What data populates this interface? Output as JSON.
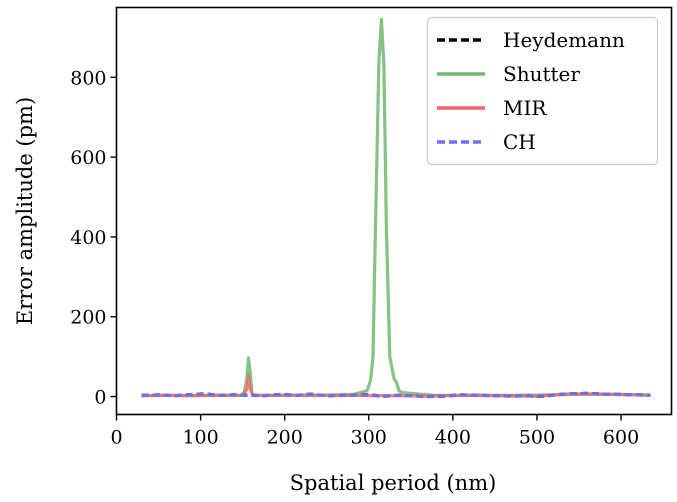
{
  "chart_data": {
    "type": "line",
    "title": "",
    "xlabel": "Spatial period (nm)",
    "ylabel": "Error amplitude (pm)",
    "xlim": [
      0,
      660
    ],
    "ylim": [
      -45,
      975
    ],
    "xticks": [
      0,
      100,
      200,
      300,
      400,
      500,
      600
    ],
    "yticks": [
      0,
      200,
      400,
      600,
      800
    ],
    "grid": false,
    "legend_position": "top-right",
    "series": [
      {
        "name": "Heydemann",
        "color": "#000000",
        "style": "dashed",
        "x": [
          30,
          50,
          70,
          90,
          105,
          120,
          140,
          158,
          175,
          195,
          215,
          230,
          250,
          270,
          290,
          300,
          310,
          320,
          335,
          350,
          370,
          390,
          410,
          430,
          450,
          470,
          490,
          500,
          510,
          525,
          540,
          560,
          580,
          600,
          620,
          635
        ],
        "y": [
          3,
          4,
          2,
          5,
          7,
          3,
          4,
          3,
          2,
          5,
          3,
          6,
          2,
          3,
          4,
          5,
          2,
          1,
          3,
          2,
          0,
          1,
          4,
          3,
          2,
          1,
          2,
          0,
          1,
          5,
          7,
          8,
          6,
          5,
          4,
          3
        ]
      },
      {
        "name": "Shutter",
        "color": "#70b870",
        "style": "solid",
        "x": [
          30,
          60,
          90,
          120,
          148,
          152,
          155,
          157,
          159,
          161,
          164,
          170,
          200,
          240,
          280,
          290,
          298,
          302,
          305,
          308,
          312,
          315,
          318,
          321,
          325,
          330,
          333,
          336,
          340,
          350,
          365,
          380,
          420,
          470,
          520,
          560,
          600,
          635
        ],
        "y": [
          2,
          3,
          2,
          3,
          3,
          10,
          45,
          97,
          60,
          8,
          3,
          3,
          3,
          3,
          5,
          10,
          15,
          40,
          100,
          430,
          840,
          945,
          830,
          420,
          100,
          45,
          35,
          15,
          10,
          8,
          5,
          3,
          3,
          3,
          4,
          6,
          5,
          4
        ]
      },
      {
        "name": "MIR",
        "color": "#ee6666",
        "style": "solid",
        "x": [
          30,
          60,
          90,
          120,
          150,
          155,
          157,
          159,
          162,
          170,
          200,
          240,
          280,
          310,
          335,
          370,
          410,
          450,
          500,
          540,
          580,
          635
        ],
        "y": [
          2,
          3,
          2,
          3,
          3,
          18,
          52,
          20,
          3,
          3,
          3,
          3,
          3,
          2,
          2,
          1,
          3,
          2,
          1,
          7,
          6,
          3
        ]
      },
      {
        "name": "CH",
        "color": "#6e6ef0",
        "style": "dashed",
        "x": [
          30,
          50,
          70,
          90,
          105,
          120,
          140,
          158,
          175,
          195,
          215,
          230,
          250,
          270,
          290,
          300,
          310,
          320,
          335,
          350,
          370,
          390,
          410,
          430,
          450,
          470,
          490,
          500,
          510,
          525,
          540,
          560,
          580,
          600,
          620,
          635
        ],
        "y": [
          3,
          4,
          2,
          5,
          7,
          3,
          4,
          3,
          2,
          5,
          3,
          6,
          2,
          3,
          4,
          5,
          2,
          1,
          3,
          2,
          0,
          1,
          4,
          3,
          2,
          1,
          2,
          0,
          1,
          5,
          7,
          8,
          6,
          5,
          4,
          3
        ]
      }
    ]
  }
}
